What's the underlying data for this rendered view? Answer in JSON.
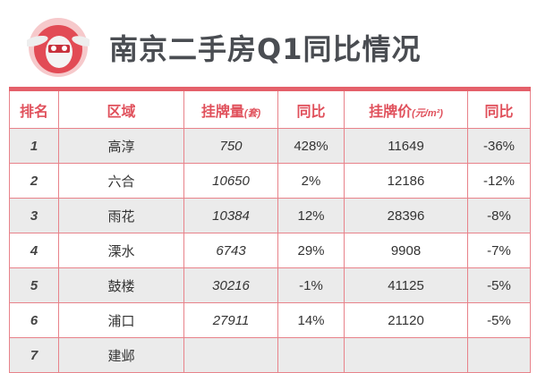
{
  "title": "南京二手房Q1同比情况",
  "colors": {
    "accent": "#e4606a",
    "title": "#4a4d52",
    "row_shade": "#ebebeb"
  },
  "logo": {
    "icon": "rabbit-mascot-logo"
  },
  "table": {
    "headers": [
      "排名",
      "区域",
      "挂牌量",
      "(套)",
      "同比",
      "挂牌价",
      "(元/m²)",
      "同比"
    ],
    "rows": [
      [
        "1",
        "高淳",
        "750",
        "428%",
        "11649",
        "-36%"
      ],
      [
        "2",
        "六合",
        "10650",
        "2%",
        "12186",
        "-12%"
      ],
      [
        "3",
        "雨花",
        "10384",
        "12%",
        "28396",
        "-8%"
      ],
      [
        "4",
        "溧水",
        "6743",
        "29%",
        "9908",
        "-7%"
      ],
      [
        "5",
        "鼓楼",
        "30216",
        "-1%",
        "41125",
        "-5%"
      ],
      [
        "6",
        "浦口",
        "27911",
        "14%",
        "21120",
        "-5%"
      ],
      [
        "7",
        "建邺",
        "",
        "",
        "",
        ""
      ]
    ]
  }
}
